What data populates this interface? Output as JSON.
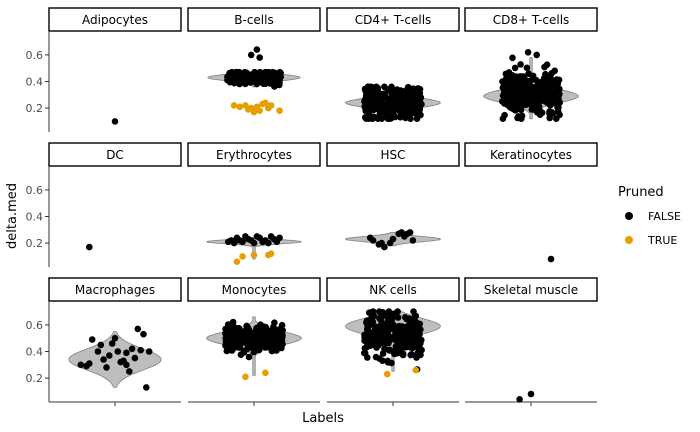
{
  "chart_data": {
    "type": "scatter",
    "subtype": "faceted jittered points with violin overlays",
    "xlabel": "Labels",
    "ylabel": "delta.med",
    "ylim": [
      0.02,
      0.78
    ],
    "yticks": [
      0.2,
      0.4,
      0.6
    ],
    "grid": false,
    "layout": {
      "rows": 3,
      "cols": 4
    },
    "colors": {
      "FALSE": "#000000",
      "TRUE": "#E69F00",
      "violin_fill": "#bebebe",
      "violin_stroke": "#808080"
    },
    "legend": {
      "title": "Pruned",
      "placement": "right",
      "entries": [
        {
          "label": "FALSE",
          "color": "#000000"
        },
        {
          "label": "TRUE",
          "color": "#E69F00"
        }
      ]
    },
    "facets": [
      {
        "label": "Adipocytes",
        "violin": null,
        "points": [
          {
            "x": 0.0,
            "y": 0.1,
            "pruned": false
          }
        ]
      },
      {
        "label": "B-cells",
        "violin": {
          "center": 0.43,
          "spread": 0.025,
          "ymin": 0.36,
          "ymax": 0.47,
          "halfwidth": 0.7
        },
        "dense": {
          "center": 0.43,
          "sd": 0.028,
          "n": 180,
          "width": 0.45,
          "pruned": false
        },
        "points": [
          {
            "x": 0.05,
            "y": 0.64,
            "pruned": false
          },
          {
            "x": -0.05,
            "y": 0.6,
            "pruned": false
          },
          {
            "x": 0.1,
            "y": 0.58,
            "pruned": false
          },
          {
            "x": -0.35,
            "y": 0.22,
            "pruned": true
          },
          {
            "x": -0.25,
            "y": 0.21,
            "pruned": true
          },
          {
            "x": -0.15,
            "y": 0.22,
            "pruned": true
          },
          {
            "x": -0.05,
            "y": 0.2,
            "pruned": true
          },
          {
            "x": 0.05,
            "y": 0.21,
            "pruned": true
          },
          {
            "x": 0.15,
            "y": 0.23,
            "pruned": true
          },
          {
            "x": 0.25,
            "y": 0.2,
            "pruned": true
          },
          {
            "x": 0.3,
            "y": 0.22,
            "pruned": true
          },
          {
            "x": 0.0,
            "y": 0.17,
            "pruned": true
          },
          {
            "x": 0.1,
            "y": 0.18,
            "pruned": true
          },
          {
            "x": 0.45,
            "y": 0.18,
            "pruned": true
          },
          {
            "x": -0.1,
            "y": 0.19,
            "pruned": true
          },
          {
            "x": 0.2,
            "y": 0.24,
            "pruned": true
          }
        ]
      },
      {
        "label": "CD4+ T-cells",
        "violin": {
          "center": 0.24,
          "spread": 0.035,
          "ymin": 0.12,
          "ymax": 0.36,
          "halfwidth": 0.72
        },
        "dense": {
          "center": 0.24,
          "sd": 0.06,
          "n": 260,
          "width": 0.48,
          "pruned": false
        },
        "points": []
      },
      {
        "label": "CD8+ T-cells",
        "violin": {
          "center": 0.29,
          "spread": 0.05,
          "ymin": 0.12,
          "ymax": 0.58,
          "halfwidth": 0.72
        },
        "dense": {
          "center": 0.3,
          "sd": 0.085,
          "n": 320,
          "width": 0.48,
          "pruned": false
        },
        "points": [
          {
            "x": -0.05,
            "y": 0.62,
            "pruned": false
          },
          {
            "x": 0.1,
            "y": 0.6,
            "pruned": false
          }
        ]
      },
      {
        "label": "DC",
        "violin": null,
        "points": [
          {
            "x": -0.45,
            "y": 0.17,
            "pruned": false
          }
        ]
      },
      {
        "label": "Erythrocytes",
        "violin": {
          "center": 0.21,
          "spread": 0.015,
          "ymin": 0.08,
          "ymax": 0.24,
          "halfwidth": 0.72
        },
        "dense": null,
        "points": [
          {
            "x": -0.4,
            "y": 0.22,
            "pruned": false
          },
          {
            "x": -0.3,
            "y": 0.24,
            "pruned": false
          },
          {
            "x": -0.2,
            "y": 0.21,
            "pruned": false
          },
          {
            "x": -0.1,
            "y": 0.23,
            "pruned": false
          },
          {
            "x": 0.0,
            "y": 0.2,
            "pruned": false
          },
          {
            "x": 0.1,
            "y": 0.24,
            "pruned": false
          },
          {
            "x": 0.2,
            "y": 0.22,
            "pruned": false
          },
          {
            "x": 0.3,
            "y": 0.25,
            "pruned": false
          },
          {
            "x": 0.4,
            "y": 0.21,
            "pruned": false
          },
          {
            "x": -0.35,
            "y": 0.2,
            "pruned": false
          },
          {
            "x": 0.05,
            "y": 0.25,
            "pruned": false
          },
          {
            "x": 0.25,
            "y": 0.2,
            "pruned": false
          },
          {
            "x": -0.15,
            "y": 0.25,
            "pruned": false
          },
          {
            "x": 0.35,
            "y": 0.23,
            "pruned": false
          },
          {
            "x": -0.25,
            "y": 0.22,
            "pruned": false
          },
          {
            "x": 0.15,
            "y": 0.21,
            "pruned": false
          },
          {
            "x": -0.05,
            "y": 0.22,
            "pruned": false
          },
          {
            "x": 0.45,
            "y": 0.24,
            "pruned": false
          },
          {
            "x": -0.45,
            "y": 0.21,
            "pruned": false
          },
          {
            "x": -0.2,
            "y": 0.1,
            "pruned": true
          },
          {
            "x": -0.3,
            "y": 0.06,
            "pruned": true
          },
          {
            "x": 0.0,
            "y": 0.11,
            "pruned": true
          },
          {
            "x": 0.25,
            "y": 0.11,
            "pruned": true
          },
          {
            "x": 0.3,
            "y": 0.12,
            "pruned": true
          }
        ]
      },
      {
        "label": "HSC",
        "violin": {
          "center": 0.23,
          "spread": 0.02,
          "ymin": 0.18,
          "ymax": 0.28,
          "halfwidth": 0.72
        },
        "dense": null,
        "points": [
          {
            "x": -0.4,
            "y": 0.24,
            "pruned": false
          },
          {
            "x": -0.35,
            "y": 0.22,
            "pruned": false
          },
          {
            "x": -0.15,
            "y": 0.17,
            "pruned": false
          },
          {
            "x": -0.05,
            "y": 0.2,
            "pruned": false
          },
          {
            "x": 0.0,
            "y": 0.23,
            "pruned": false
          },
          {
            "x": 0.1,
            "y": 0.27,
            "pruned": false
          },
          {
            "x": 0.2,
            "y": 0.25,
            "pruned": false
          },
          {
            "x": 0.25,
            "y": 0.27,
            "pruned": false
          },
          {
            "x": 0.3,
            "y": 0.28,
            "pruned": false
          },
          {
            "x": 0.35,
            "y": 0.22,
            "pruned": false
          },
          {
            "x": -0.25,
            "y": 0.19,
            "pruned": false
          },
          {
            "x": -0.2,
            "y": 0.2,
            "pruned": false
          },
          {
            "x": 0.15,
            "y": 0.28,
            "pruned": false
          }
        ]
      },
      {
        "label": "Keratinocytes",
        "violin": null,
        "points": [
          {
            "x": 0.35,
            "y": 0.08,
            "pruned": false
          }
        ]
      },
      {
        "label": "Macrophages",
        "violin": {
          "center": 0.34,
          "spread": 0.08,
          "ymin": 0.13,
          "ymax": 0.55,
          "halfwidth": 0.7
        },
        "dense": null,
        "points": [
          {
            "x": -0.6,
            "y": 0.3,
            "pruned": false
          },
          {
            "x": -0.45,
            "y": 0.31,
            "pruned": false
          },
          {
            "x": -0.4,
            "y": 0.49,
            "pruned": false
          },
          {
            "x": -0.3,
            "y": 0.4,
            "pruned": false
          },
          {
            "x": -0.25,
            "y": 0.45,
            "pruned": false
          },
          {
            "x": -0.2,
            "y": 0.34,
            "pruned": false
          },
          {
            "x": -0.1,
            "y": 0.37,
            "pruned": false
          },
          {
            "x": -0.05,
            "y": 0.46,
            "pruned": false
          },
          {
            "x": 0.0,
            "y": 0.5,
            "pruned": false
          },
          {
            "x": 0.05,
            "y": 0.4,
            "pruned": false
          },
          {
            "x": 0.1,
            "y": 0.32,
            "pruned": false
          },
          {
            "x": 0.15,
            "y": 0.33,
            "pruned": false
          },
          {
            "x": 0.2,
            "y": 0.39,
            "pruned": false
          },
          {
            "x": 0.25,
            "y": 0.25,
            "pruned": false
          },
          {
            "x": 0.3,
            "y": 0.42,
            "pruned": false
          },
          {
            "x": 0.35,
            "y": 0.35,
            "pruned": false
          },
          {
            "x": 0.4,
            "y": 0.57,
            "pruned": false
          },
          {
            "x": 0.45,
            "y": 0.41,
            "pruned": false
          },
          {
            "x": 0.5,
            "y": 0.53,
            "pruned": false
          },
          {
            "x": 0.55,
            "y": 0.13,
            "pruned": false
          },
          {
            "x": -0.5,
            "y": 0.29,
            "pruned": false
          },
          {
            "x": 0.6,
            "y": 0.4,
            "pruned": false
          },
          {
            "x": -0.15,
            "y": 0.28,
            "pruned": false
          },
          {
            "x": 0.2,
            "y": 0.3,
            "pruned": false
          }
        ]
      },
      {
        "label": "Monocytes",
        "violin": {
          "center": 0.5,
          "spread": 0.05,
          "ymin": 0.22,
          "ymax": 0.66,
          "halfwidth": 0.72
        },
        "dense": {
          "center": 0.5,
          "sd": 0.05,
          "n": 320,
          "width": 0.48,
          "pruned": false
        },
        "points": [
          {
            "x": -0.15,
            "y": 0.21,
            "pruned": true
          },
          {
            "x": 0.2,
            "y": 0.24,
            "pruned": true
          }
        ]
      },
      {
        "label": "NK cells",
        "violin": {
          "center": 0.59,
          "spread": 0.06,
          "ymin": 0.25,
          "ymax": 0.7,
          "halfwidth": 0.72
        },
        "dense": {
          "center": 0.52,
          "sd": 0.085,
          "n": 260,
          "width": 0.48,
          "pruned": false
        },
        "points": [
          {
            "x": -0.1,
            "y": 0.23,
            "pruned": true
          },
          {
            "x": 0.4,
            "y": 0.26,
            "pruned": true
          }
        ]
      },
      {
        "label": "Skeletal muscle",
        "violin": null,
        "points": [
          {
            "x": -0.2,
            "y": 0.04,
            "pruned": false
          },
          {
            "x": 0.0,
            "y": 0.08,
            "pruned": false
          }
        ]
      }
    ]
  }
}
